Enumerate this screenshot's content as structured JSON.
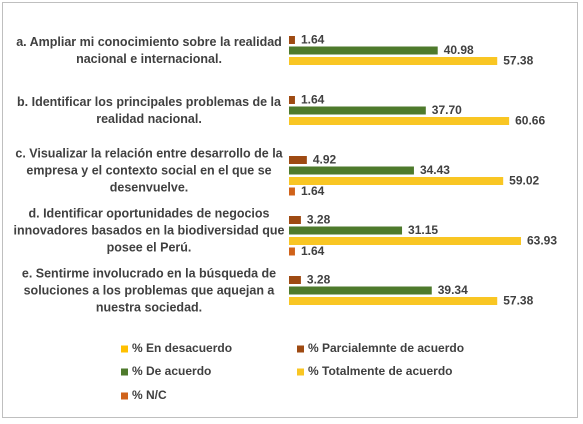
{
  "chart_data": {
    "type": "bar",
    "orientation": "horizontal",
    "categories": [
      "a. Ampliar mi conocimiento sobre la realidad nacional e internacional.",
      "b. Identificar los principales problemas de la realidad nacional.",
      "c. Visualizar la relación entre desarrollo de la empresa y el contexto social en el que se desenvuelve.",
      "d. Identificar oportunidades de negocios innovadores basados en la biodiversidad que posee el Perú.",
      "e. Sentirme involucrado en la búsqueda de soluciones a los problemas que aquejan a nuestra sociedad."
    ],
    "series": [
      {
        "name": "% En desacuerdo",
        "color": "#ffc000",
        "values": [
          null,
          null,
          null,
          null,
          null
        ]
      },
      {
        "name": "% Parcialemnte de acuerdo",
        "color": "#9e4a12",
        "values": [
          1.64,
          1.64,
          4.92,
          3.28,
          3.28
        ],
        "value_labels": [
          "1.64",
          "1.64",
          "4.92",
          "3.28",
          "3.28"
        ]
      },
      {
        "name": "% De acuerdo",
        "color": "#4e7a2c",
        "values": [
          40.98,
          37.7,
          34.43,
          31.15,
          39.34
        ],
        "value_labels": [
          "40.98",
          "37.70",
          "34.43",
          "31.15",
          "39.34"
        ]
      },
      {
        "name": "% Totalmente de acuerdo",
        "color": "#f9c623",
        "values": [
          57.38,
          60.66,
          59.02,
          63.93,
          57.38
        ],
        "value_labels": [
          "57.38",
          "60.66",
          "59.02",
          "63.93",
          "57.38"
        ]
      },
      {
        "name": "% N/C",
        "color": "#d0621a",
        "values": [
          null,
          null,
          1.64,
          1.64,
          null
        ],
        "value_labels": [
          null,
          null,
          "1.64",
          "1.64",
          null
        ]
      }
    ]
  }
}
